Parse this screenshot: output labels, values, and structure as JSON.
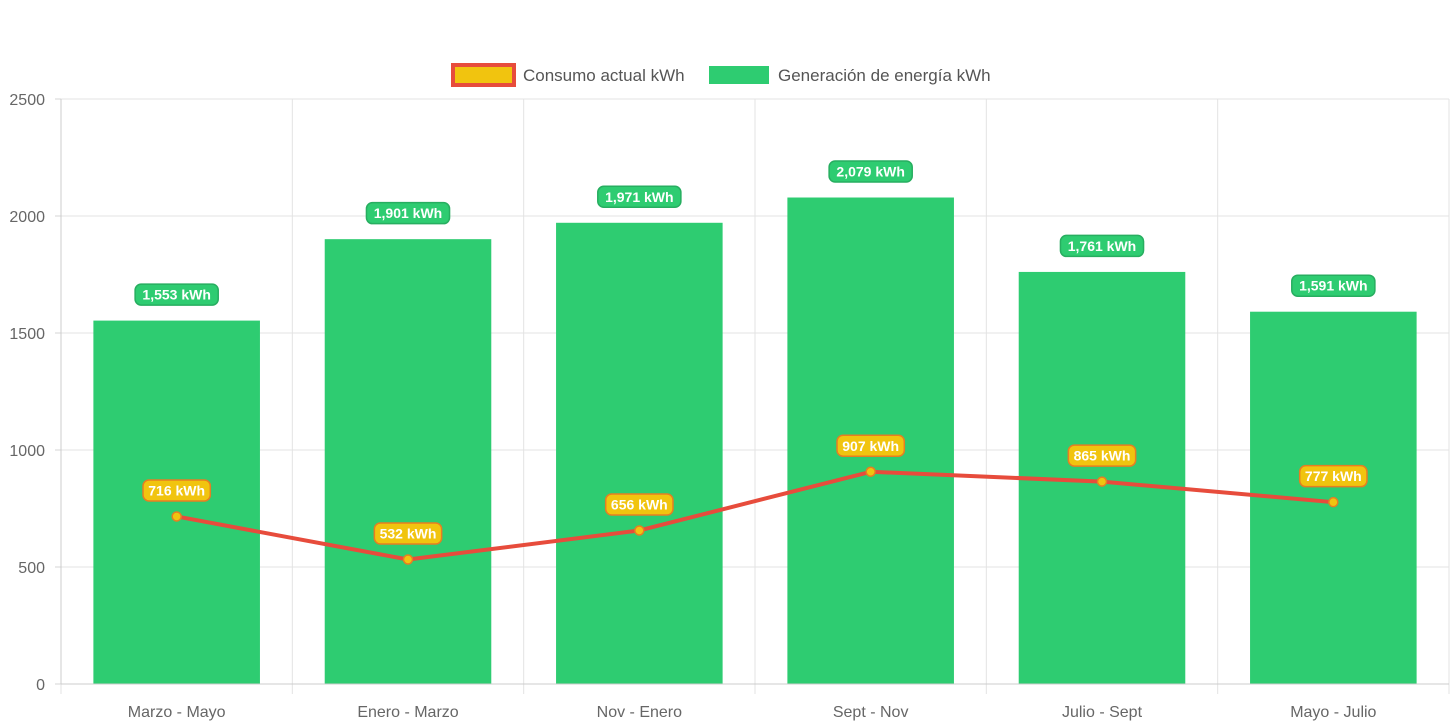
{
  "chart_data": {
    "type": "bar",
    "categories": [
      "Marzo - Mayo",
      "Enero - Marzo",
      "Nov - Enero",
      "Sept - Nov",
      "Julio - Sept",
      "Mayo - Julio"
    ],
    "series": [
      {
        "name": "Consumo actual kWh",
        "type": "line",
        "values": [
          716,
          532,
          656,
          907,
          865,
          777
        ],
        "labels": [
          "716 kWh",
          "532 kWh",
          "656 kWh",
          "907 kWh",
          "865 kWh",
          "777 kWh"
        ],
        "color": "#e74c3c",
        "fill_color": "#f1c40f"
      },
      {
        "name": "Generación de energía kWh",
        "type": "bar",
        "values": [
          1553,
          1901,
          1971,
          2079,
          1761,
          1591
        ],
        "labels": [
          "1,553 kWh",
          "1,901 kWh",
          "1,971 kWh",
          "2,079 kWh",
          "1,761 kWh",
          "1,591 kWh"
        ],
        "color": "#2ecc71"
      }
    ],
    "y_ticks": [
      "0",
      "500",
      "1000",
      "1500",
      "2000",
      "2500"
    ],
    "ylim": [
      0,
      2500
    ],
    "grid": true,
    "legend_position": "top-center"
  }
}
